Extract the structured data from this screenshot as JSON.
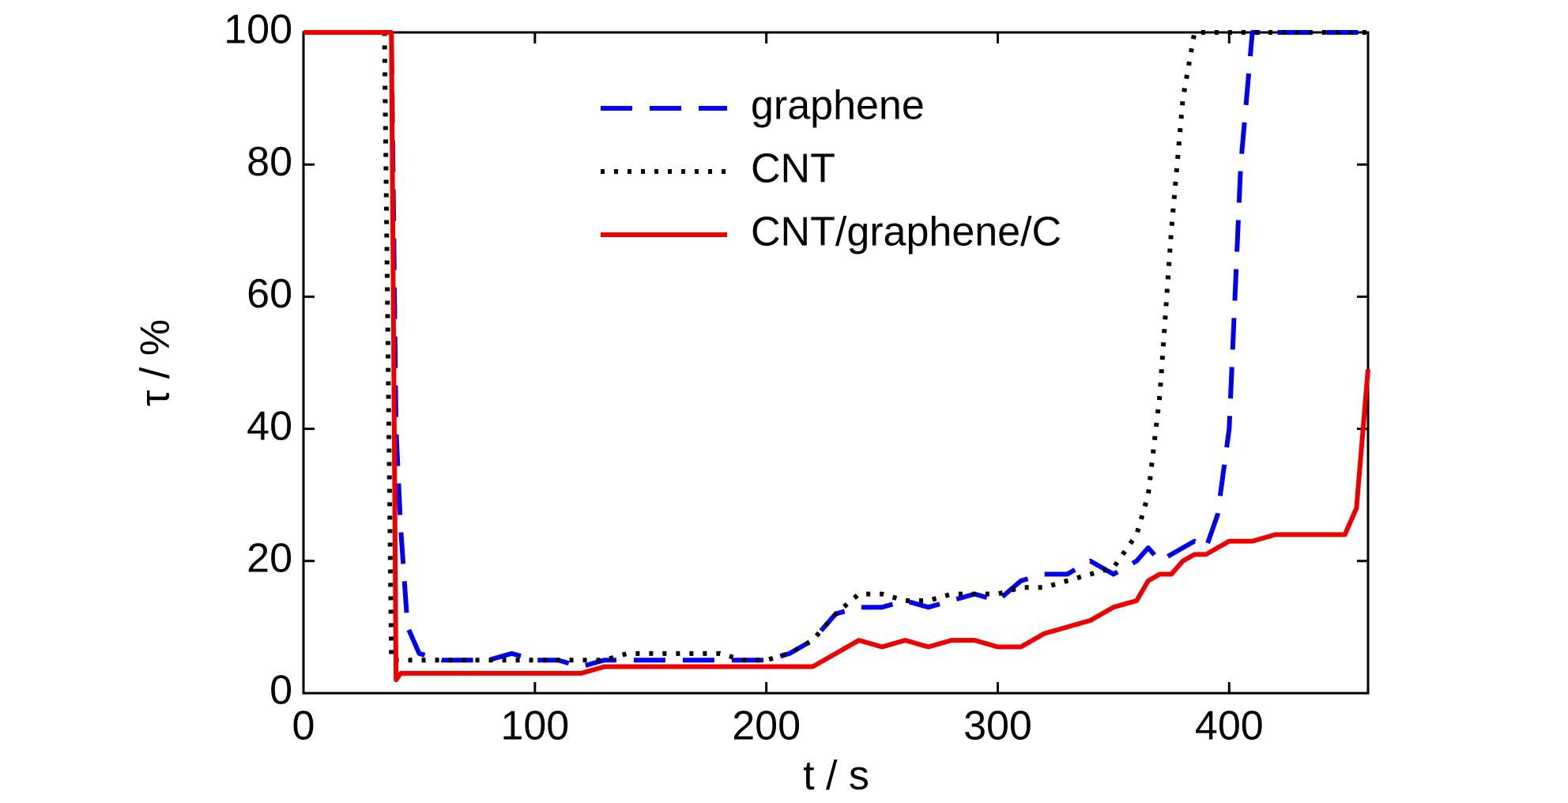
{
  "chart_data": {
    "type": "line",
    "xlabel": "t / s",
    "ylabel": "τ / %",
    "x": [
      0,
      10,
      20,
      30,
      35,
      38,
      40,
      42,
      45,
      50,
      60,
      70,
      80,
      90,
      100,
      110,
      120,
      130,
      140,
      150,
      160,
      170,
      180,
      190,
      200,
      210,
      220,
      225,
      230,
      240,
      250,
      260,
      270,
      280,
      290,
      300,
      310,
      320,
      330,
      340,
      350,
      360,
      365,
      370,
      375,
      380,
      385,
      390,
      395,
      400,
      405,
      410,
      420,
      430,
      440,
      450,
      455,
      460
    ],
    "series": [
      {
        "name": "graphene",
        "color": "#0000ee",
        "linestyle": "dashed",
        "values": [
          100,
          100,
          100,
          100,
          100,
          100,
          40,
          25,
          10,
          6,
          5,
          5,
          5,
          6,
          5,
          5,
          4,
          5,
          5,
          5,
          5,
          5,
          5,
          5,
          5,
          6,
          8,
          10,
          12,
          13,
          13,
          14,
          13,
          14,
          15,
          14,
          17,
          18,
          18,
          20,
          18,
          20,
          22,
          20,
          21,
          22,
          23,
          22,
          27,
          40,
          80,
          100,
          100,
          100,
          100,
          100,
          100,
          100
        ]
      },
      {
        "name": "CNT",
        "color": "#000000",
        "linestyle": "dotted",
        "values": [
          100,
          100,
          100,
          100,
          100,
          5,
          5,
          5,
          5,
          5,
          5,
          5,
          5,
          5,
          5,
          5,
          5,
          5,
          6,
          6,
          6,
          6,
          6,
          5,
          5,
          6,
          8,
          10,
          12,
          15,
          15,
          14,
          14,
          15,
          15,
          15,
          16,
          16,
          17,
          18,
          19,
          24,
          30,
          45,
          70,
          90,
          100,
          100,
          100,
          100,
          100,
          100,
          100,
          100,
          100,
          100,
          100,
          100
        ]
      },
      {
        "name": "CNT/graphene/C",
        "color": "#ee0000",
        "linestyle": "solid",
        "values": [
          100,
          100,
          100,
          100,
          100,
          100,
          2,
          3,
          3,
          3,
          3,
          3,
          3,
          3,
          3,
          3,
          3,
          4,
          4,
          4,
          4,
          4,
          4,
          4,
          4,
          4,
          4,
          5,
          6,
          8,
          7,
          8,
          7,
          8,
          8,
          7,
          7,
          9,
          10,
          11,
          13,
          14,
          17,
          18,
          18,
          20,
          21,
          21,
          22,
          23,
          23,
          23,
          24,
          24,
          24,
          24,
          28,
          49
        ]
      }
    ],
    "xlim": [
      0,
      460
    ],
    "xticks": [
      0,
      100,
      200,
      300,
      400
    ],
    "ylim": [
      0,
      100
    ],
    "yticks": [
      0,
      20,
      40,
      60,
      80,
      100
    ]
  }
}
